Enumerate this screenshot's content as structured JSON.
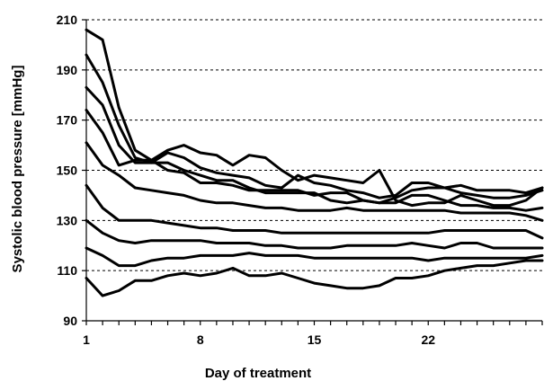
{
  "chart_data": {
    "type": "line",
    "title": "",
    "xlabel": "Day  of treatment",
    "ylabel": "Systolic blood pressure [mmHg]",
    "xlim": [
      1,
      29
    ],
    "ylim": [
      90,
      210
    ],
    "x_ticks": [
      1,
      8,
      15,
      22
    ],
    "y_ticks": [
      90,
      110,
      130,
      150,
      170,
      190,
      210
    ],
    "grid": "horizontal dashed",
    "legend": "none",
    "series_color": "#000000",
    "x": [
      1,
      2,
      3,
      4,
      5,
      6,
      7,
      8,
      9,
      10,
      11,
      12,
      13,
      14,
      15,
      16,
      17,
      18,
      19,
      20,
      21,
      22,
      23,
      24,
      25,
      26,
      27,
      28,
      29
    ],
    "series": [
      {
        "values": [
          206,
          202,
          175,
          158,
          154,
          158,
          160,
          157,
          156,
          152,
          156,
          155,
          150,
          146,
          148,
          147,
          146,
          145,
          150,
          138,
          136,
          137,
          137,
          140,
          138,
          136,
          136,
          138,
          143
        ]
      },
      {
        "values": [
          196,
          185,
          168,
          155,
          153,
          157,
          155,
          151,
          149,
          148,
          147,
          144,
          143,
          148,
          145,
          144,
          142,
          141,
          139,
          140,
          145,
          145,
          143,
          141,
          140,
          139,
          139,
          140,
          142
        ]
      },
      {
        "values": [
          183,
          176,
          160,
          153,
          153,
          153,
          150,
          148,
          146,
          146,
          143,
          141,
          141,
          141,
          141,
          138,
          137,
          138,
          137,
          137,
          140,
          140,
          138,
          136,
          136,
          135,
          135,
          134,
          135
        ]
      },
      {
        "values": [
          174,
          165,
          152,
          154,
          154,
          150,
          149,
          145,
          145,
          144,
          142,
          142,
          142,
          142,
          140,
          141,
          141,
          138,
          137,
          139,
          142,
          143,
          143,
          144,
          142,
          142,
          142,
          141,
          143
        ]
      },
      {
        "values": [
          161,
          152,
          148,
          143,
          142,
          141,
          140,
          138,
          137,
          137,
          136,
          135,
          135,
          134,
          134,
          134,
          135,
          134,
          134,
          134,
          134,
          134,
          134,
          133,
          133,
          133,
          133,
          132,
          130
        ]
      },
      {
        "values": [
          144,
          135,
          130,
          130,
          130,
          129,
          128,
          127,
          127,
          126,
          126,
          126,
          125,
          125,
          125,
          125,
          125,
          125,
          125,
          125,
          125,
          125,
          126,
          126,
          126,
          126,
          126,
          126,
          123
        ]
      },
      {
        "values": [
          130,
          125,
          122,
          121,
          122,
          122,
          122,
          122,
          121,
          121,
          121,
          120,
          120,
          119,
          119,
          119,
          120,
          120,
          120,
          120,
          121,
          120,
          119,
          121,
          121,
          119,
          119,
          119,
          119
        ]
      },
      {
        "values": [
          119,
          116,
          112,
          112,
          114,
          115,
          115,
          116,
          116,
          116,
          117,
          116,
          116,
          116,
          115,
          115,
          115,
          115,
          115,
          115,
          115,
          114,
          115,
          115,
          115,
          115,
          115,
          115,
          116
        ]
      },
      {
        "values": [
          107,
          100,
          102,
          106,
          106,
          108,
          109,
          108,
          109,
          111,
          108,
          108,
          109,
          107,
          105,
          104,
          103,
          103,
          104,
          107,
          107,
          108,
          110,
          111,
          112,
          112,
          113,
          114,
          114
        ]
      }
    ]
  }
}
